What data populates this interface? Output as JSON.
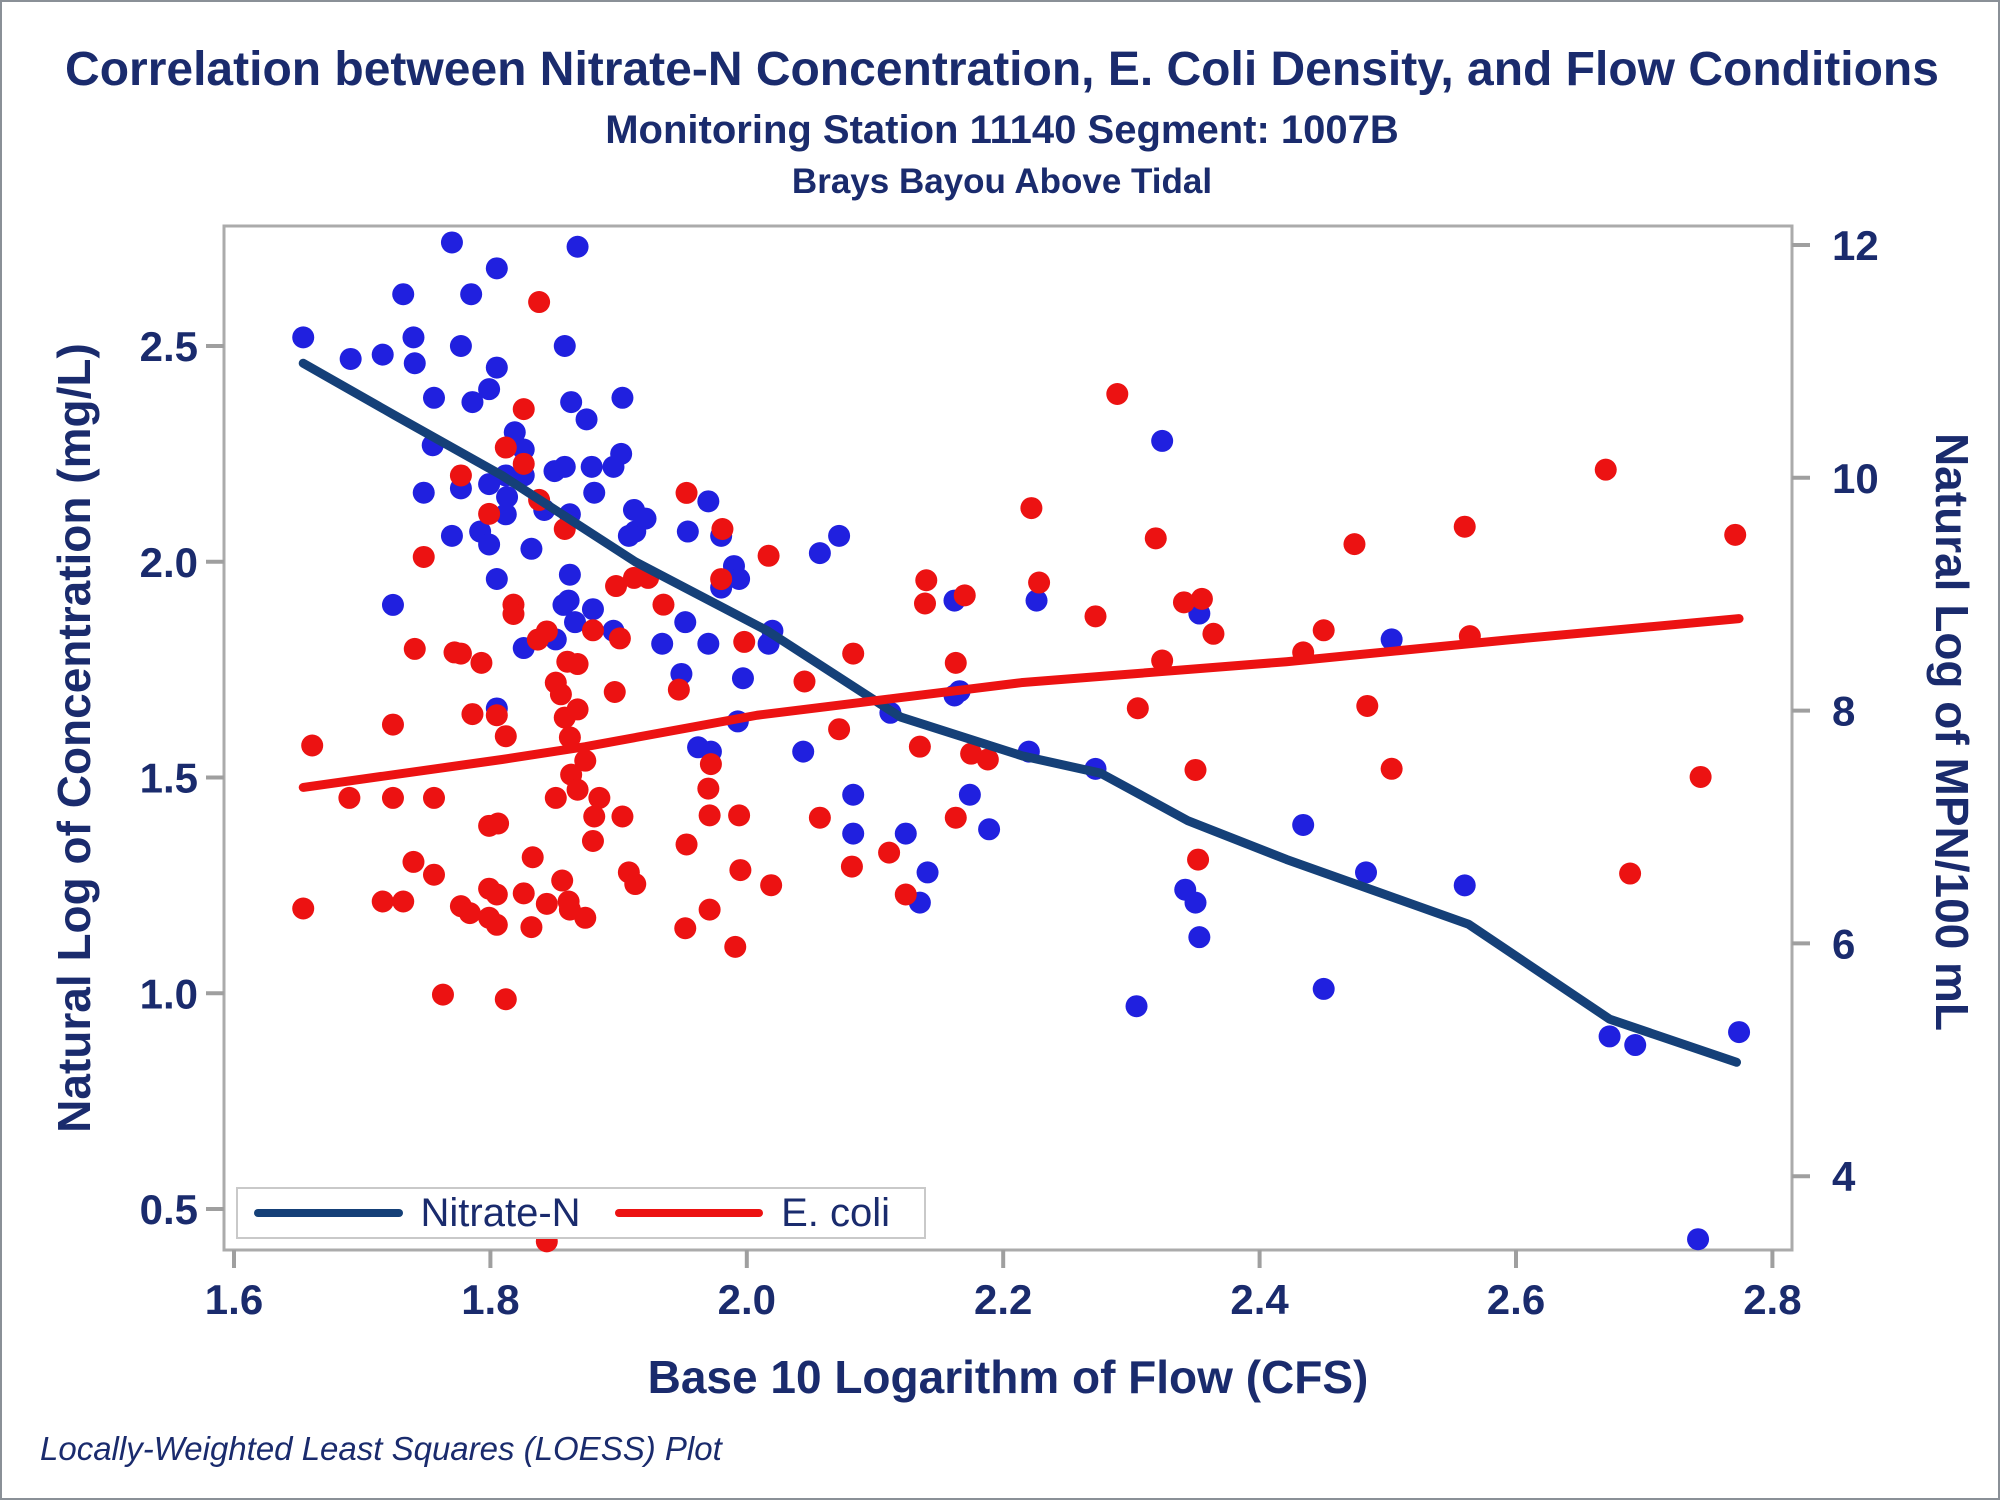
{
  "titles": {
    "line1": "Correlation between Nitrate-N Concentration, E. Coli Density, and Flow Conditions",
    "line2": "Monitoring Station 11140 Segment: 1007B",
    "line3": "Brays Bayou Above Tidal"
  },
  "footnote": "Locally-Weighted Least Squares (LOESS) Plot",
  "legend": {
    "items": [
      {
        "label": "Nitrate-N",
        "color": "#154078"
      },
      {
        "label": "E. coli",
        "color": "#EC1212"
      }
    ]
  },
  "colors": {
    "navy_text": "#1A2B6D",
    "nitrate_line": "#154078",
    "nitrate_point": "#2020DF",
    "ecoli": "#EC1212",
    "frame": "#ABABAB",
    "tick": "#9F9F9F",
    "legend_border": "#C9C9C9"
  },
  "chart_data": {
    "type": "scatter",
    "title": "Correlation between Nitrate-N Concentration, E. Coli Density, and Flow Conditions",
    "subtitle": "Monitoring Station 11140 Segment: 1007B — Brays Bayou Above Tidal",
    "grid": false,
    "legend_position": "bottom-left inside",
    "x_axis": {
      "label": "Base 10 Logarithm of Flow (CFS)",
      "tick_labels": [
        "1.6",
        "1.8",
        "2.0",
        "2.2",
        "2.4",
        "2.6",
        "2.8"
      ],
      "range": [
        1.592,
        2.815
      ]
    },
    "y_axis_left": {
      "label": "Natural Log of Concentration (mg/L)",
      "tick_labels": [
        "2.5",
        "2.0",
        "1.5",
        "1.0",
        "0.5"
      ],
      "range": [
        0.41,
        2.78
      ]
    },
    "y_axis_right": {
      "label": "Natural Log of MPN/100 mL",
      "tick_labels": [
        "12",
        "10",
        "8",
        "6",
        "4"
      ],
      "range": [
        3.37,
        12.16
      ]
    },
    "series": [
      {
        "name": "Nitrate-N",
        "type": "scatter",
        "axis": "left",
        "color": "#2020DF",
        "points": [
          [
            1.77,
            2.74
          ],
          [
            1.805,
            2.68
          ],
          [
            1.868,
            2.73
          ],
          [
            1.732,
            2.62
          ],
          [
            1.785,
            2.62
          ],
          [
            1.654,
            2.52
          ],
          [
            1.74,
            2.52
          ],
          [
            1.777,
            2.5
          ],
          [
            1.858,
            2.5
          ],
          [
            1.691,
            2.47
          ],
          [
            1.716,
            2.48
          ],
          [
            1.741,
            2.46
          ],
          [
            1.805,
            2.45
          ],
          [
            1.799,
            2.4
          ],
          [
            1.756,
            2.38
          ],
          [
            1.786,
            2.37
          ],
          [
            1.863,
            2.37
          ],
          [
            1.903,
            2.38
          ],
          [
            1.875,
            2.33
          ],
          [
            1.819,
            2.3
          ],
          [
            1.826,
            2.26
          ],
          [
            1.902,
            2.25
          ],
          [
            1.755,
            2.27
          ],
          [
            1.85,
            2.21
          ],
          [
            1.858,
            2.22
          ],
          [
            1.879,
            2.22
          ],
          [
            1.896,
            2.22
          ],
          [
            1.812,
            2.2
          ],
          [
            1.826,
            2.2
          ],
          [
            1.813,
            2.15
          ],
          [
            1.812,
            2.11
          ],
          [
            1.881,
            2.16
          ],
          [
            1.842,
            2.12
          ],
          [
            1.862,
            2.11
          ],
          [
            1.912,
            2.12
          ],
          [
            1.908,
            2.06
          ],
          [
            1.913,
            2.07
          ],
          [
            1.921,
            2.1
          ],
          [
            1.954,
            2.07
          ],
          [
            1.97,
            2.14
          ],
          [
            1.98,
            2.06
          ],
          [
            1.832,
            2.03
          ],
          [
            1.862,
            1.97
          ],
          [
            1.805,
            1.96
          ],
          [
            1.99,
            1.99
          ],
          [
            1.994,
            1.96
          ],
          [
            1.98,
            1.94
          ],
          [
            1.748,
            2.16
          ],
          [
            1.777,
            2.17
          ],
          [
            1.799,
            2.18
          ],
          [
            1.77,
            2.06
          ],
          [
            1.792,
            2.07
          ],
          [
            1.799,
            2.04
          ],
          [
            1.724,
            1.9
          ],
          [
            1.861,
            1.91
          ],
          [
            1.857,
            1.9
          ],
          [
            1.866,
            1.86
          ],
          [
            1.88,
            1.89
          ],
          [
            1.826,
            1.8
          ],
          [
            1.851,
            1.82
          ],
          [
            1.896,
            1.84
          ],
          [
            1.952,
            1.86
          ],
          [
            1.934,
            1.81
          ],
          [
            1.97,
            1.81
          ],
          [
            1.949,
            1.74
          ],
          [
            1.997,
            1.73
          ],
          [
            1.993,
            1.63
          ],
          [
            1.805,
            1.66
          ],
          [
            1.962,
            1.57
          ],
          [
            1.972,
            1.56
          ],
          [
            2.324,
            2.28
          ],
          [
            2.072,
            2.06
          ],
          [
            2.057,
            2.02
          ],
          [
            2.162,
            1.91
          ],
          [
            2.226,
            1.91
          ],
          [
            2.353,
            1.88
          ],
          [
            2.02,
            1.84
          ],
          [
            2.017,
            1.81
          ],
          [
            2.166,
            1.7
          ],
          [
            2.162,
            1.69
          ],
          [
            2.112,
            1.65
          ],
          [
            2.044,
            1.56
          ],
          [
            2.503,
            1.82
          ],
          [
            2.22,
            1.56
          ],
          [
            2.272,
            1.52
          ],
          [
            2.083,
            1.46
          ],
          [
            2.174,
            1.46
          ],
          [
            2.083,
            1.37
          ],
          [
            2.124,
            1.37
          ],
          [
            2.189,
            1.38
          ],
          [
            2.141,
            1.28
          ],
          [
            2.135,
            1.21
          ],
          [
            2.342,
            1.24
          ],
          [
            2.35,
            1.21
          ],
          [
            2.353,
            1.13
          ],
          [
            2.304,
            0.97
          ],
          [
            2.434,
            1.39
          ],
          [
            2.483,
            1.28
          ],
          [
            2.56,
            1.25
          ],
          [
            2.45,
            1.01
          ],
          [
            2.673,
            0.9
          ],
          [
            2.693,
            0.88
          ],
          [
            2.774,
            0.91
          ],
          [
            2.742,
            0.43
          ]
        ]
      },
      {
        "name": "E. coli",
        "type": "scatter",
        "axis": "right",
        "color": "#EC1212",
        "points": [
          [
            1.838,
            11.51
          ],
          [
            2.289,
            10.72
          ],
          [
            1.777,
            10.02
          ],
          [
            1.826,
            10.59
          ],
          [
            1.799,
            9.69
          ],
          [
            1.812,
            10.26
          ],
          [
            1.826,
            10.12
          ],
          [
            1.838,
            9.81
          ],
          [
            1.748,
            9.32
          ],
          [
            1.858,
            9.56
          ],
          [
            1.953,
            9.87
          ],
          [
            1.981,
            9.56
          ],
          [
            1.912,
            9.14
          ],
          [
            1.923,
            9.14
          ],
          [
            1.898,
            9.07
          ],
          [
            1.935,
            8.91
          ],
          [
            1.98,
            9.13
          ],
          [
            1.998,
            8.59
          ],
          [
            1.818,
            8.91
          ],
          [
            1.818,
            8.83
          ],
          [
            1.837,
            8.61
          ],
          [
            1.844,
            8.68
          ],
          [
            1.88,
            8.69
          ],
          [
            1.901,
            8.62
          ],
          [
            1.741,
            8.53
          ],
          [
            1.772,
            8.5
          ],
          [
            1.777,
            8.49
          ],
          [
            1.793,
            8.41
          ],
          [
            1.851,
            8.24
          ],
          [
            1.855,
            8.14
          ],
          [
            1.86,
            8.42
          ],
          [
            1.868,
            8.4
          ],
          [
            1.897,
            8.16
          ],
          [
            1.947,
            8.18
          ],
          [
            1.858,
            7.94
          ],
          [
            1.868,
            8.01
          ],
          [
            1.786,
            7.97
          ],
          [
            1.724,
            7.88
          ],
          [
            1.805,
            7.96
          ],
          [
            1.812,
            7.78
          ],
          [
            1.862,
            7.77
          ],
          [
            1.661,
            7.7
          ],
          [
            1.69,
            7.25
          ],
          [
            1.724,
            7.25
          ],
          [
            1.756,
            7.25
          ],
          [
            1.799,
            7.01
          ],
          [
            1.806,
            7.03
          ],
          [
            1.74,
            6.7
          ],
          [
            1.756,
            6.59
          ],
          [
            1.716,
            6.36
          ],
          [
            1.732,
            6.36
          ],
          [
            1.654,
            6.3
          ],
          [
            1.777,
            6.32
          ],
          [
            1.784,
            6.26
          ],
          [
            1.799,
            6.47
          ],
          [
            1.805,
            6.42
          ],
          [
            1.799,
            6.22
          ],
          [
            1.805,
            6.16
          ],
          [
            1.763,
            5.56
          ],
          [
            1.874,
            7.57
          ],
          [
            1.863,
            7.45
          ],
          [
            1.868,
            7.32
          ],
          [
            1.851,
            7.25
          ],
          [
            1.885,
            7.25
          ],
          [
            1.881,
            7.09
          ],
          [
            1.903,
            7.09
          ],
          [
            1.97,
            7.33
          ],
          [
            1.971,
            7.1
          ],
          [
            1.994,
            7.1
          ],
          [
            1.972,
            7.54
          ],
          [
            1.88,
            6.88
          ],
          [
            1.953,
            6.85
          ],
          [
            1.833,
            6.74
          ],
          [
            1.995,
            6.63
          ],
          [
            1.908,
            6.61
          ],
          [
            1.913,
            6.51
          ],
          [
            1.856,
            6.54
          ],
          [
            1.826,
            6.43
          ],
          [
            1.844,
            6.34
          ],
          [
            1.861,
            6.36
          ],
          [
            1.862,
            6.29
          ],
          [
            1.874,
            6.22
          ],
          [
            1.832,
            6.14
          ],
          [
            1.971,
            6.29
          ],
          [
            1.952,
            6.13
          ],
          [
            1.991,
            5.97
          ],
          [
            1.812,
            5.52
          ],
          [
            1.844,
            3.44
          ],
          [
            2.017,
            9.33
          ],
          [
            2.222,
            9.74
          ],
          [
            2.319,
            9.48
          ],
          [
            2.14,
            9.12
          ],
          [
            2.139,
            8.92
          ],
          [
            2.17,
            8.99
          ],
          [
            2.228,
            9.1
          ],
          [
            2.272,
            8.81
          ],
          [
            2.341,
            8.93
          ],
          [
            2.355,
            8.96
          ],
          [
            2.364,
            8.66
          ],
          [
            2.083,
            8.49
          ],
          [
            2.163,
            8.41
          ],
          [
            2.324,
            8.43
          ],
          [
            2.045,
            8.25
          ],
          [
            2.072,
            7.84
          ],
          [
            2.135,
            7.69
          ],
          [
            2.175,
            7.63
          ],
          [
            2.188,
            7.58
          ],
          [
            2.305,
            8.02
          ],
          [
            2.057,
            7.08
          ],
          [
            2.163,
            7.08
          ],
          [
            2.35,
            7.49
          ],
          [
            2.111,
            6.78
          ],
          [
            2.082,
            6.66
          ],
          [
            2.019,
            6.5
          ],
          [
            2.124,
            6.42
          ],
          [
            2.352,
            6.72
          ],
          [
            2.67,
            10.07
          ],
          [
            2.56,
            9.58
          ],
          [
            2.474,
            9.43
          ],
          [
            2.771,
            9.51
          ],
          [
            2.45,
            8.69
          ],
          [
            2.434,
            8.5
          ],
          [
            2.564,
            8.64
          ],
          [
            2.484,
            8.04
          ],
          [
            2.503,
            7.5
          ],
          [
            2.744,
            7.43
          ],
          [
            2.689,
            6.6
          ]
        ]
      },
      {
        "name": "Nitrate-N LOESS fit",
        "type": "line",
        "axis": "left",
        "color": "#154078",
        "points": [
          [
            1.654,
            2.46
          ],
          [
            1.725,
            2.34
          ],
          [
            1.809,
            2.2
          ],
          [
            1.913,
            2.0
          ],
          [
            2.016,
            1.84
          ],
          [
            2.12,
            1.64
          ],
          [
            2.215,
            1.55
          ],
          [
            2.276,
            1.51
          ],
          [
            2.344,
            1.4
          ],
          [
            2.421,
            1.31
          ],
          [
            2.563,
            1.16
          ],
          [
            2.673,
            0.94
          ],
          [
            2.772,
            0.84
          ]
        ]
      },
      {
        "name": "E. coli LOESS fit",
        "type": "line",
        "axis": "right",
        "color": "#EC1212",
        "points": [
          [
            1.654,
            7.34
          ],
          [
            1.809,
            7.58
          ],
          [
            1.874,
            7.69
          ],
          [
            2.008,
            7.96
          ],
          [
            2.214,
            8.24
          ],
          [
            2.421,
            8.42
          ],
          [
            2.596,
            8.61
          ],
          [
            2.774,
            8.79
          ]
        ]
      }
    ]
  }
}
